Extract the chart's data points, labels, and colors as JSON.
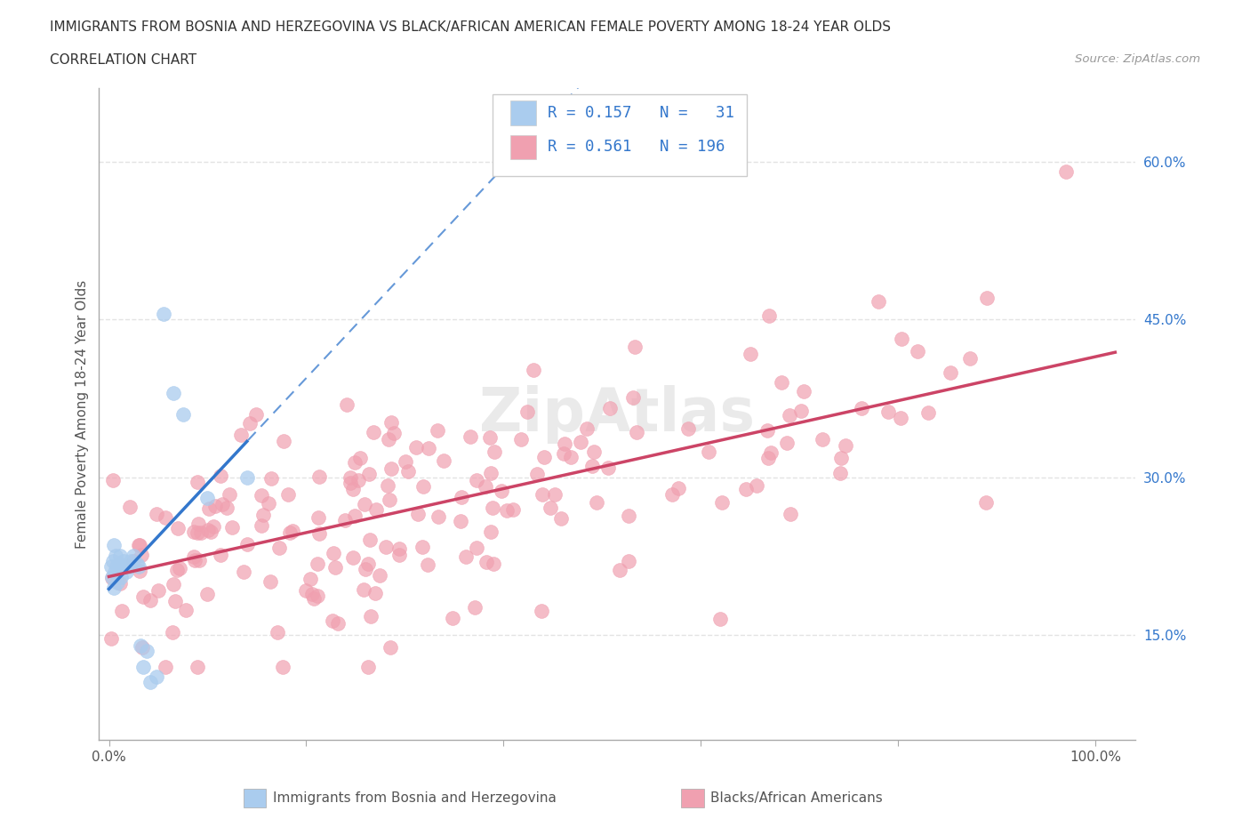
{
  "title_line1": "IMMIGRANTS FROM BOSNIA AND HERZEGOVINA VS BLACK/AFRICAN AMERICAN FEMALE POVERTY AMONG 18-24 YEAR OLDS",
  "title_line2": "CORRELATION CHART",
  "source_text": "Source: ZipAtlas.com",
  "ylabel": "Female Poverty Among 18-24 Year Olds",
  "xlim_min": -0.01,
  "xlim_max": 1.04,
  "ylim_min": 0.05,
  "ylim_max": 0.67,
  "y_ticks": [
    0.15,
    0.3,
    0.45,
    0.6
  ],
  "y_tick_labels": [
    "15.0%",
    "30.0%",
    "45.0%",
    "60.0%"
  ],
  "blue_R": 0.157,
  "blue_N": 31,
  "pink_R": 0.561,
  "pink_N": 196,
  "blue_color": "#aaccee",
  "pink_color": "#f0a0b0",
  "blue_line_color": "#3377cc",
  "pink_line_color": "#cc4466",
  "legend_label_blue": "Immigrants from Bosnia and Herzegovina",
  "legend_label_pink": "Blacks/African Americans",
  "background_color": "#ffffff",
  "title_color": "#333333",
  "axis_label_color": "#555555",
  "tick_color": "#555555",
  "ytick_color": "#3377cc",
  "watermark_color": "#dddddd",
  "grid_line_color": "#dddddd",
  "legend_text_color": "#3377cc",
  "legend_border_color": "#cccccc"
}
